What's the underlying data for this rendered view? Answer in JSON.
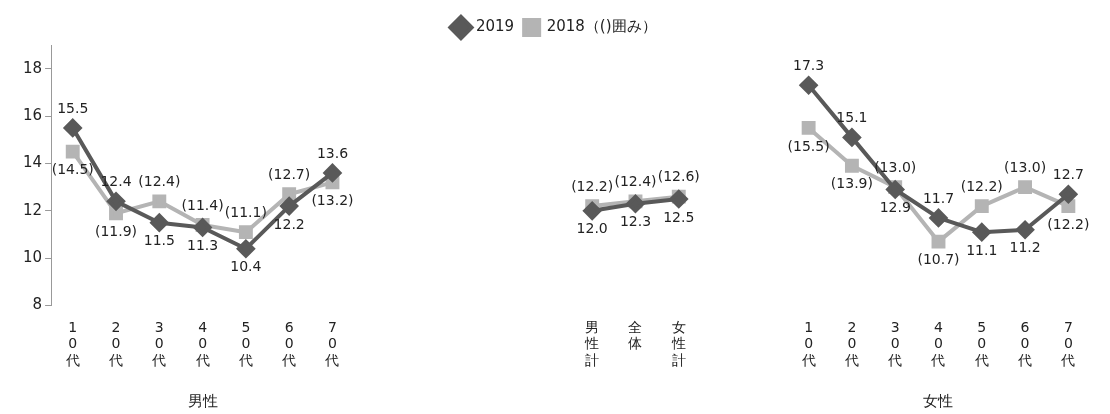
{
  "chart_data": {
    "type": "line",
    "categories": [
      "10代",
      "20代",
      "30代",
      "40代",
      "50代",
      "60代",
      "70代",
      null,
      null,
      null,
      null,
      null,
      "男性計",
      "全体",
      "女性計",
      null,
      null,
      "10代",
      "20代",
      "30代",
      "40代",
      "50代",
      "60代",
      "70代"
    ],
    "series": [
      {
        "name": "2019",
        "color": "#595959",
        "marker": "diamond",
        "values": [
          15.5,
          12.4,
          11.5,
          11.3,
          10.4,
          12.2,
          13.6,
          null,
          null,
          null,
          null,
          null,
          12.0,
          12.3,
          12.5,
          null,
          null,
          17.3,
          15.1,
          12.9,
          11.7,
          11.1,
          11.2,
          12.7
        ],
        "value_labels": [
          "15.5",
          "12.4",
          "11.5",
          "11.3",
          "10.4",
          "12.2",
          "13.6",
          null,
          null,
          null,
          null,
          null,
          "12.0",
          "12.3",
          "12.5",
          null,
          null,
          "17.3",
          "15.1",
          "12.9",
          "11.7",
          "11.1",
          "11.2",
          "12.7"
        ]
      },
      {
        "name": "2018（()囲み）",
        "color": "#b4b4b4",
        "marker": "square",
        "values": [
          14.5,
          11.9,
          12.4,
          11.4,
          11.1,
          12.7,
          13.2,
          null,
          null,
          null,
          null,
          null,
          12.2,
          12.4,
          12.6,
          null,
          null,
          15.5,
          13.9,
          13.0,
          10.7,
          12.2,
          13.0,
          12.2
        ],
        "value_labels": [
          "(14.5)",
          "(11.9)",
          "(12.4)",
          "(11.4)",
          "(11.1)",
          "(12.7)",
          "(13.2)",
          null,
          null,
          null,
          null,
          null,
          "(12.2)",
          "(12.4)",
          "(12.6)",
          null,
          null,
          "(15.5)",
          "(13.9)",
          "(13.0)",
          "(10.7)",
          "(12.2)",
          "(13.0)",
          "(12.2)"
        ]
      }
    ],
    "ylim": [
      8,
      19
    ],
    "yticks": [
      8,
      10,
      12,
      14,
      16,
      18
    ],
    "grid": false,
    "legend": "top",
    "annotations": [
      "男性",
      "女性"
    ]
  }
}
